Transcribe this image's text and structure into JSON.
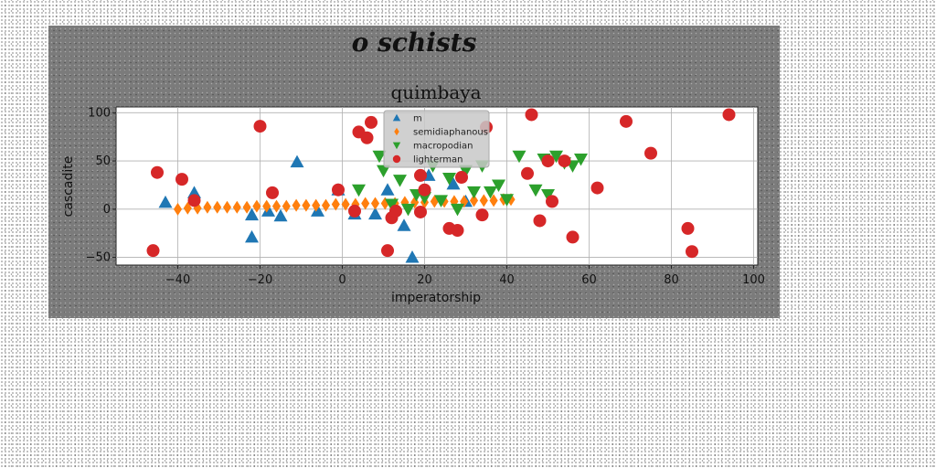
{
  "figure": {
    "suptitle": "o schists"
  },
  "chart_data": {
    "type": "scatter",
    "title": "quimbaya",
    "xlabel": "imperatorship",
    "ylabel": "cascadite",
    "xlim": [
      -55,
      101
    ],
    "ylim": [
      -58,
      106
    ],
    "xticks": [
      -40,
      -20,
      0,
      20,
      40,
      60,
      80,
      100
    ],
    "yticks": [
      -50,
      0,
      50,
      100
    ],
    "grid": true,
    "legend": {
      "placement": "top-center"
    },
    "series": [
      {
        "name": "m",
        "marker": "triangle-up",
        "color": "#1f77b4",
        "x": [
          -43,
          -36,
          -22,
          -22,
          -18,
          -15,
          -11,
          -6,
          -1,
          3,
          8,
          11,
          15,
          17,
          21,
          27,
          30
        ],
        "y": [
          7,
          17,
          -6,
          -29,
          -2,
          -7,
          49,
          -2,
          20,
          -5,
          -5,
          20,
          -17,
          -50,
          35,
          26,
          8
        ]
      },
      {
        "name": "semidiaphanous",
        "marker": "diamond",
        "color": "#ff7f0e",
        "x": [
          -40,
          -37.6,
          -35.2,
          -32.8,
          -30.4,
          -28,
          -25.6,
          -23.2,
          -20.8,
          -18.4,
          -16,
          -13.6,
          -11.2,
          -8.8,
          -6.4,
          -4,
          -1.6,
          0.8,
          3.2,
          5.6,
          8,
          10.4,
          12.8,
          15.2,
          17.6,
          20,
          22.4,
          24.8,
          27.2,
          29.6,
          32,
          34.4,
          36.8,
          39.2,
          41
        ],
        "y": [
          0,
          1,
          1,
          2,
          2,
          2,
          2,
          2,
          3,
          3,
          3,
          3,
          4,
          4,
          4,
          4,
          5,
          5,
          5,
          6,
          6,
          6,
          6,
          7,
          7,
          7,
          8,
          8,
          8,
          8,
          9,
          9,
          9,
          10,
          10
        ]
      },
      {
        "name": "macropodian",
        "marker": "triangle-down",
        "color": "#2ca02c",
        "x": [
          4,
          9,
          10,
          12,
          14,
          16,
          18,
          20,
          22,
          24,
          26,
          28,
          30,
          32,
          34,
          36,
          38,
          40,
          43,
          47,
          49,
          50,
          52,
          54,
          56,
          58
        ],
        "y": [
          20,
          55,
          40,
          5,
          30,
          0,
          15,
          12,
          45,
          9,
          32,
          0,
          40,
          18,
          45,
          18,
          25,
          10,
          55,
          20,
          52,
          15,
          55,
          48,
          45,
          52
        ]
      },
      {
        "name": "lighterman",
        "marker": "circle",
        "color": "#d62728",
        "x": [
          -46,
          -45,
          -39,
          -36,
          -20,
          -17,
          -1,
          3,
          4,
          6,
          7,
          11,
          12,
          13,
          19,
          19,
          20,
          26,
          28,
          29,
          34,
          35,
          45,
          46,
          48,
          50,
          51,
          54,
          56,
          62,
          69,
          75,
          84,
          85,
          94
        ],
        "y": [
          -43,
          38,
          31,
          9,
          86,
          17,
          20,
          -2,
          80,
          74,
          90,
          -43,
          -9,
          -2,
          35,
          -3,
          20,
          -20,
          -22,
          33,
          -6,
          85,
          37,
          98,
          -12,
          50,
          8,
          50,
          -29,
          22,
          91,
          58,
          -20,
          -44,
          98
        ]
      }
    ]
  }
}
